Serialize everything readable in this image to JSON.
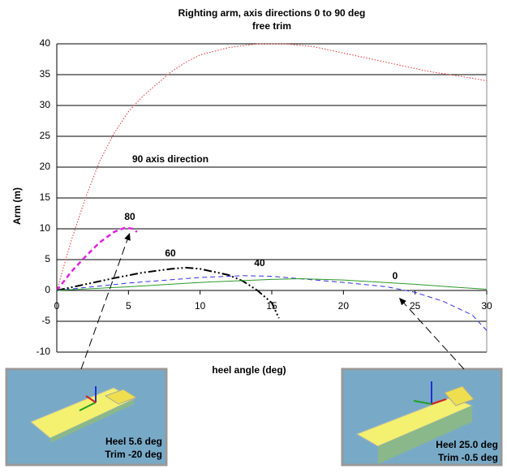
{
  "chart_data": {
    "type": "line",
    "title": "Righting arm, axis directions 0 to 90 deg",
    "subtitle": "free trim",
    "x_label": "heel angle (deg)",
    "y_label": "Arm (m)",
    "xlim": [
      0,
      30
    ],
    "xticks": [
      0,
      5,
      10,
      15,
      20,
      25,
      30
    ],
    "ylim": [
      -10,
      40
    ],
    "yticks": [
      -10,
      -5,
      0,
      5,
      10,
      15,
      20,
      25,
      30,
      35,
      40
    ],
    "grid": true,
    "series": [
      {
        "name": "90 axis direction",
        "color": "#e83030",
        "style": "dotted",
        "x": [
          0,
          1,
          2,
          3,
          4,
          5,
          6,
          7,
          8,
          9,
          10,
          12,
          14,
          16,
          18,
          20,
          22,
          24,
          26,
          28,
          30
        ],
        "values": [
          0,
          8,
          15,
          21,
          25.5,
          29,
          31.5,
          33.5,
          35.5,
          37,
          38.2,
          39.4,
          40,
          40,
          39.5,
          38.5,
          37.5,
          36.5,
          35.5,
          34.8,
          34
        ]
      },
      {
        "name": "80",
        "color": "#e020e0",
        "style": "dashed",
        "x": [
          0,
          1,
          2,
          3,
          4,
          4.8,
          5.3,
          5.6
        ],
        "values": [
          0,
          3,
          5.5,
          7.8,
          9.5,
          10.2,
          10,
          9.5
        ]
      },
      {
        "name": "60",
        "color": "#000000",
        "style": "dashdot",
        "x": [
          0,
          2,
          4,
          6,
          8,
          9,
          10,
          12,
          13,
          14,
          15,
          15.5
        ],
        "values": [
          0,
          1,
          2,
          2.9,
          3.5,
          3.7,
          3.5,
          2.5,
          1.5,
          0,
          -2,
          -4.5
        ]
      },
      {
        "name": "40",
        "color": "#3030e0",
        "style": "dashed",
        "x": [
          0,
          5,
          10,
          13,
          15,
          20,
          23,
          25,
          27,
          29,
          30
        ],
        "values": [
          0,
          1.2,
          2.1,
          2.4,
          2.3,
          1.3,
          0.6,
          -0.3,
          -1.8,
          -4,
          -6.5
        ]
      },
      {
        "name": "0",
        "color": "#2a9a2a",
        "style": "solid",
        "x": [
          0,
          5,
          10,
          15,
          17,
          20,
          25,
          28,
          30
        ],
        "values": [
          0,
          0.6,
          1.3,
          1.8,
          1.9,
          1.7,
          1,
          0.5,
          0.2
        ]
      }
    ],
    "insets": [
      {
        "lines": [
          "Heel 5.6 deg",
          "Trim -20 deg"
        ]
      },
      {
        "lines": [
          "Heel 25.0 deg",
          "Trim -0.5 deg"
        ]
      }
    ]
  }
}
